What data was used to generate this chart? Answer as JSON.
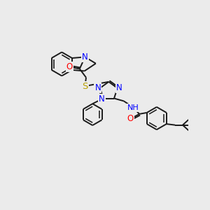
{
  "bg_color": "#ebebeb",
  "atom_colors": {
    "N": "#0000ff",
    "O": "#ff0000",
    "S": "#b8a000",
    "H": "#555555",
    "C": "#000000"
  },
  "bond_color": "#1a1a1a",
  "bond_width": 1.4,
  "font_size": 8.5,
  "title": ""
}
